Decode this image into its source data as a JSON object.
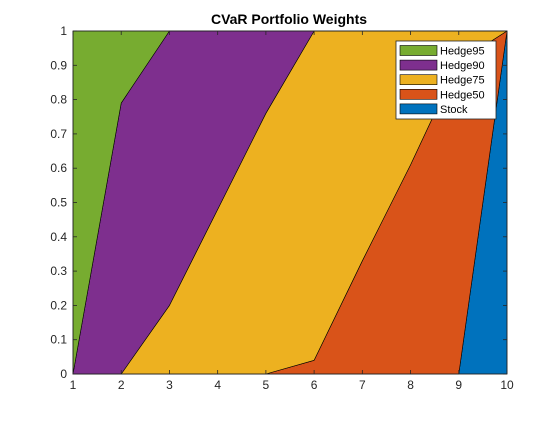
{
  "chart_data": {
    "type": "area",
    "title": "CVaR Portfolio Weights",
    "xlabel": "",
    "ylabel": "",
    "x": [
      1,
      2,
      3,
      4,
      5,
      6,
      7,
      8,
      9,
      10
    ],
    "xlim": [
      1,
      10
    ],
    "ylim": [
      0,
      1
    ],
    "x_ticks": [
      "1",
      "2",
      "3",
      "4",
      "5",
      "6",
      "7",
      "8",
      "9",
      "10"
    ],
    "y_ticks": [
      "0",
      "0.1",
      "0.2",
      "0.3",
      "0.4",
      "0.5",
      "0.6",
      "0.7",
      "0.8",
      "0.9",
      "1"
    ],
    "grid": false,
    "stacked": true,
    "legend_position": "top-right",
    "series": [
      {
        "name": "Stock",
        "color": "#0072bd",
        "values": [
          0,
          0,
          0,
          0,
          0,
          0,
          0,
          0,
          0,
          1
        ]
      },
      {
        "name": "Hedge50",
        "color": "#d95319",
        "values": [
          0,
          0,
          0,
          0,
          0,
          0.04,
          0.33,
          0.61,
          0.91,
          0
        ]
      },
      {
        "name": "Hedge75",
        "color": "#edb120",
        "values": [
          0,
          0,
          0.2,
          0.48,
          0.76,
          0.96,
          0.67,
          0.39,
          0.09,
          0
        ]
      },
      {
        "name": "Hedge90",
        "color": "#7e2f8e",
        "values": [
          0,
          0.79,
          0.8,
          0.52,
          0.24,
          0,
          0,
          0,
          0,
          0
        ]
      },
      {
        "name": "Hedge95",
        "color": "#77ac30",
        "values": [
          1,
          0.21,
          0,
          0,
          0,
          0,
          0,
          0,
          0,
          0
        ]
      }
    ],
    "legend_order": [
      "Hedge95",
      "Hedge90",
      "Hedge75",
      "Hedge50",
      "Stock"
    ]
  }
}
